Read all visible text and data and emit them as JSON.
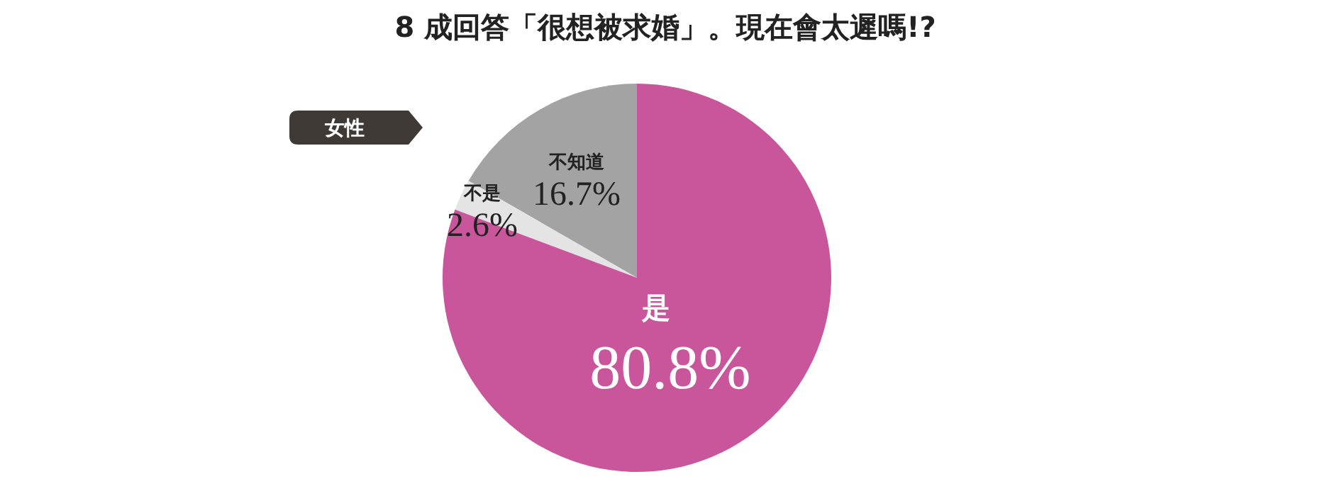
{
  "chart_data": {
    "type": "pie",
    "title": "8 成回答「很想被求婚」。現在會太遲嗎!?",
    "annotations": [
      "女性"
    ],
    "categories": [
      "是",
      "不是",
      "不知道"
    ],
    "values": [
      80.8,
      2.6,
      16.7
    ],
    "colors": [
      "#c9559a",
      "#e4e4e4",
      "#a3a3a3"
    ],
    "value_labels": [
      "80.8%",
      "2.6%",
      "16.7%"
    ]
  }
}
